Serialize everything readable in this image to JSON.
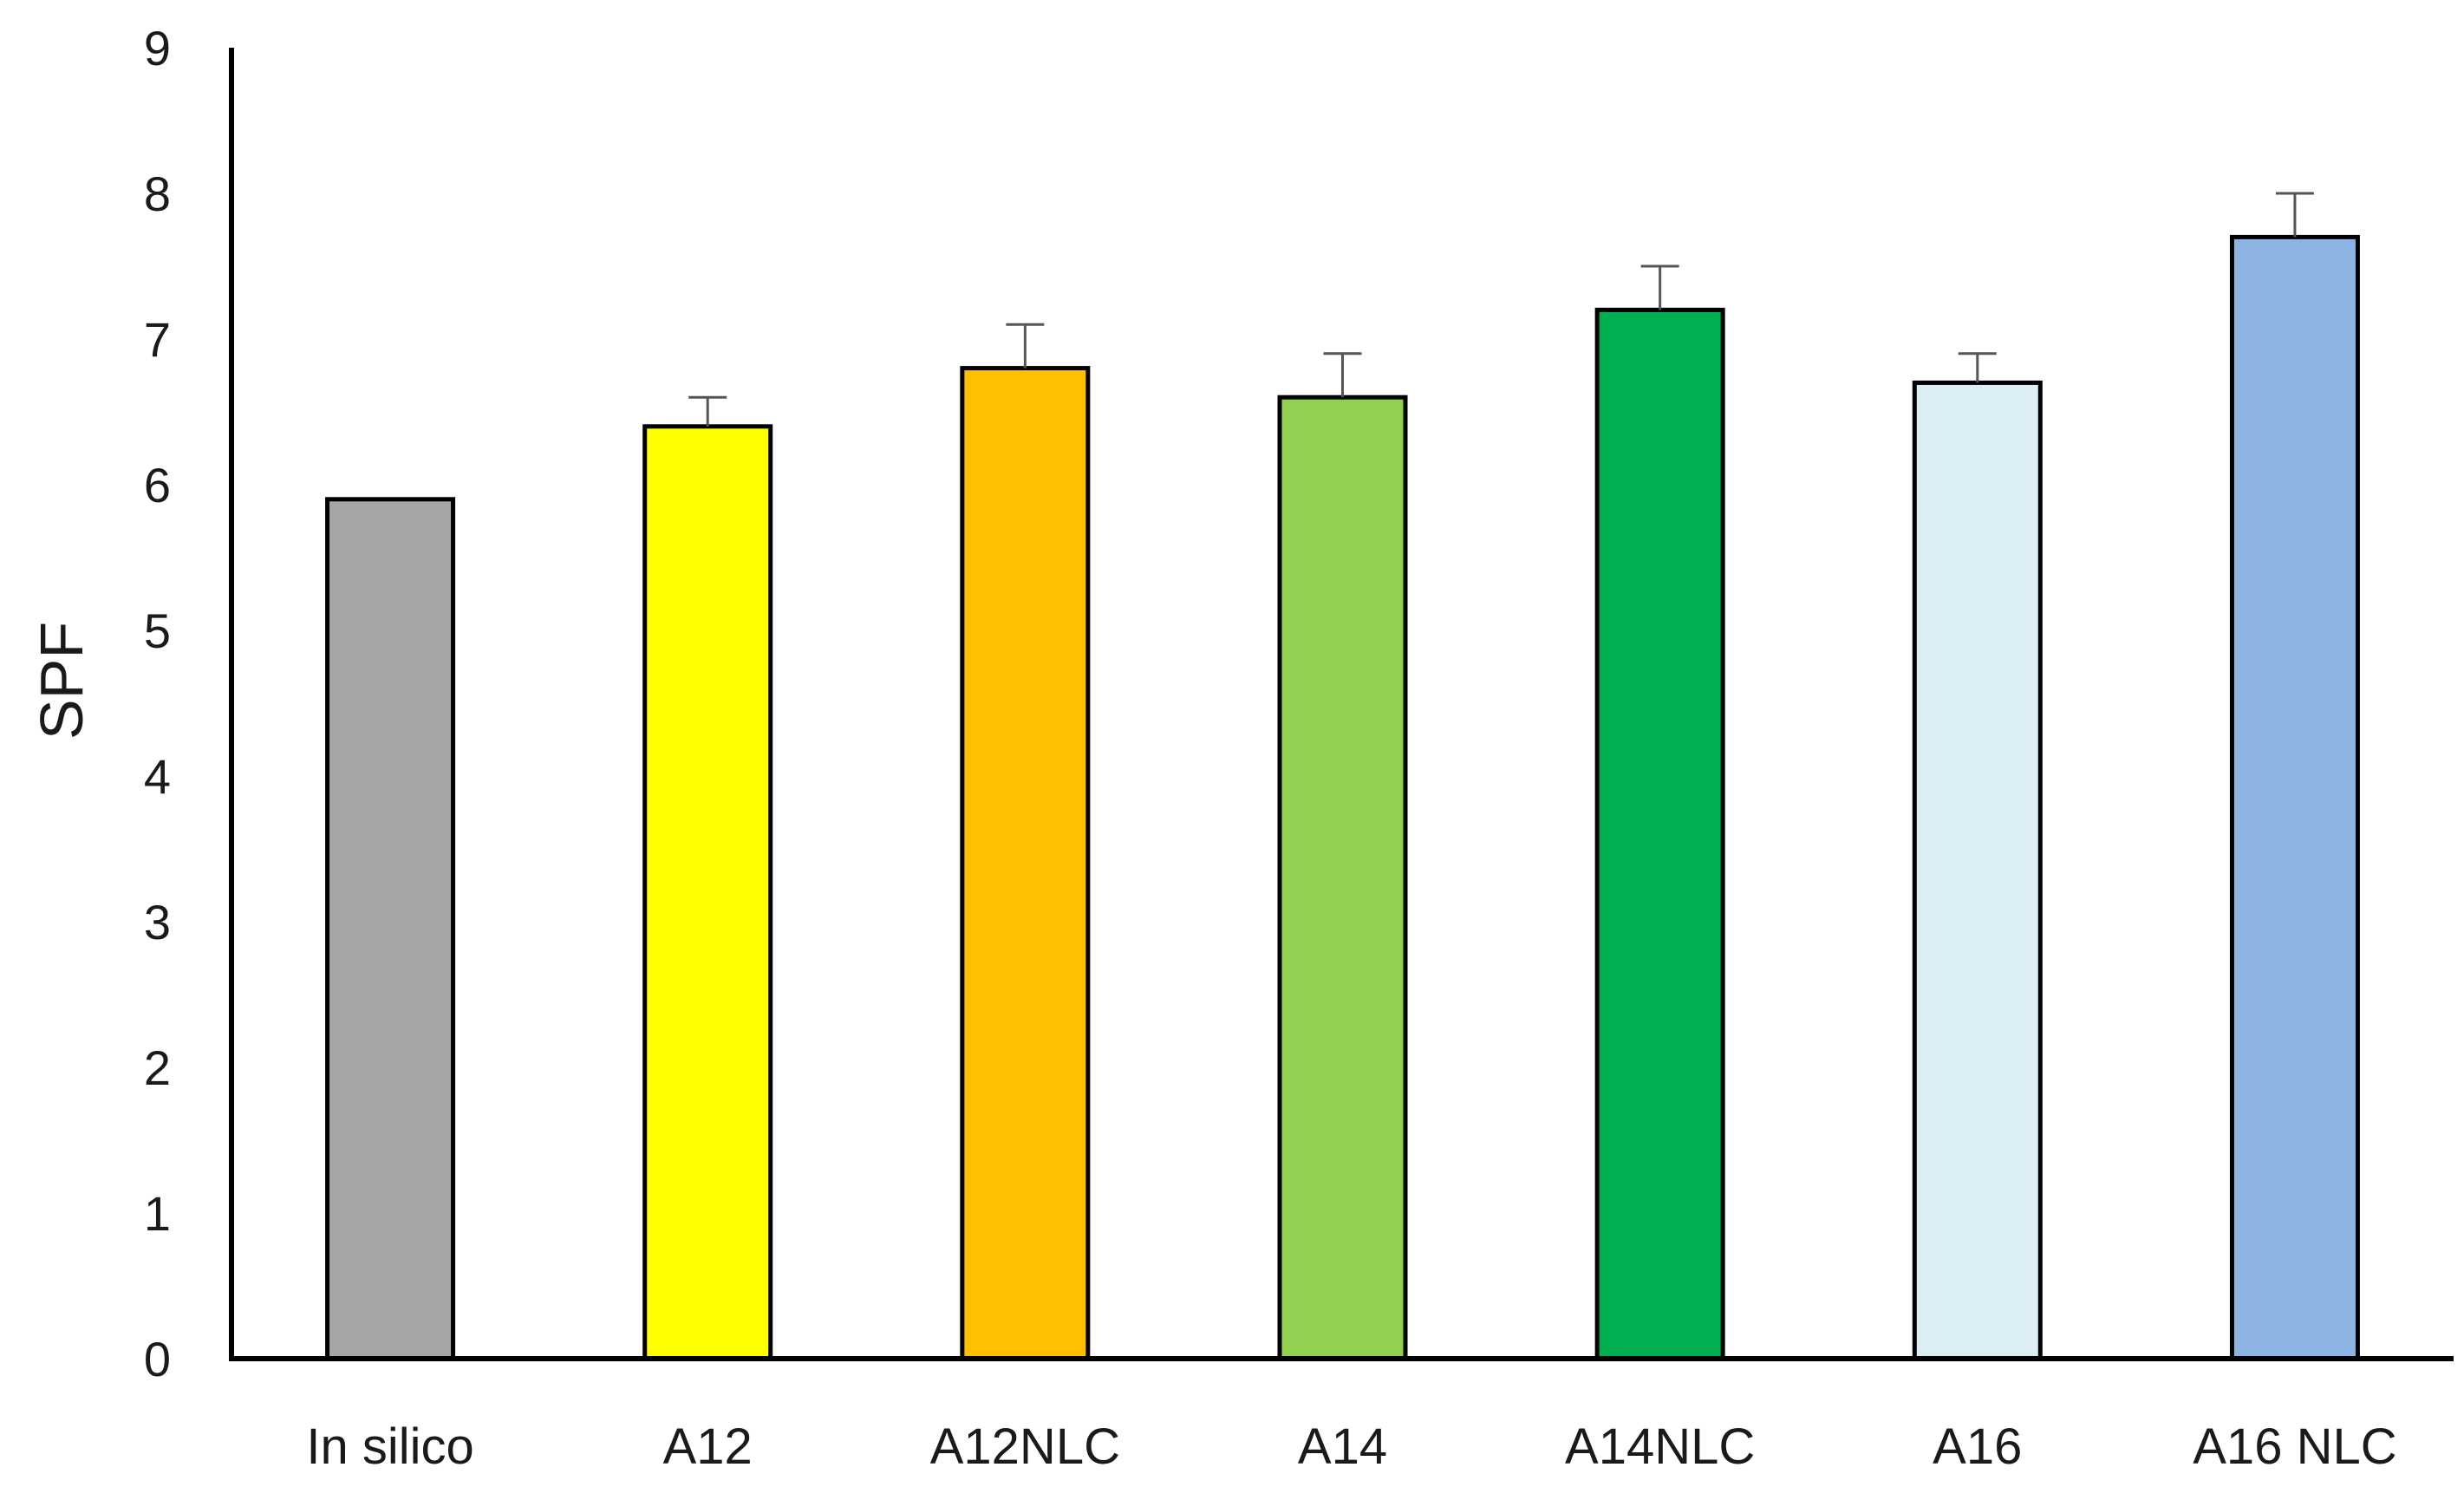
{
  "chart_data": {
    "type": "bar",
    "title": "",
    "xlabel": "",
    "ylabel": "SPF",
    "ylim": [
      0,
      9
    ],
    "yticks": [
      0,
      1,
      2,
      3,
      4,
      5,
      6,
      7,
      8,
      9
    ],
    "categories": [
      "In silico",
      "A12",
      "A12NLC",
      "A14",
      "A14NLC",
      "A16",
      "A16 NLC"
    ],
    "values": [
      5.9,
      6.4,
      6.8,
      6.6,
      7.2,
      6.7,
      7.7
    ],
    "error_plus": [
      0.0,
      0.2,
      0.3,
      0.3,
      0.3,
      0.2,
      0.3
    ],
    "colors": [
      "#a6a6a6",
      "#ffff00",
      "#ffc000",
      "#92d050",
      "#00b050",
      "#daeef3",
      "#8eb4e3"
    ],
    "grid": false,
    "legend": "none"
  }
}
